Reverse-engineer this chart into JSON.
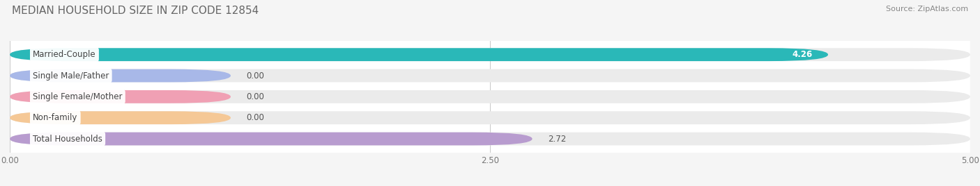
{
  "title": "MEDIAN HOUSEHOLD SIZE IN ZIP CODE 12854",
  "source": "Source: ZipAtlas.com",
  "categories": [
    "Married-Couple",
    "Single Male/Father",
    "Single Female/Mother",
    "Non-family",
    "Total Households"
  ],
  "values": [
    4.26,
    0.0,
    0.0,
    0.0,
    2.72
  ],
  "bar_colors": [
    "#2ab8b8",
    "#a8b8e8",
    "#f0a0b4",
    "#f5c896",
    "#b89ccf"
  ],
  "xlim": [
    0,
    5.0
  ],
  "xticks": [
    0.0,
    2.5,
    5.0
  ],
  "xtick_labels": [
    "0.00",
    "2.50",
    "5.00"
  ],
  "value_labels": [
    "4.26",
    "0.00",
    "0.00",
    "0.00",
    "2.72"
  ],
  "zero_bar_width": 1.15,
  "background_color": "#ffffff",
  "fig_background_color": "#f5f5f5",
  "bar_background_color": "#ebebeb",
  "title_fontsize": 11,
  "source_fontsize": 8,
  "label_fontsize": 8.5,
  "value_fontsize": 8.5,
  "tick_fontsize": 8.5,
  "bar_height": 0.62,
  "figsize": [
    14.06,
    2.68
  ]
}
